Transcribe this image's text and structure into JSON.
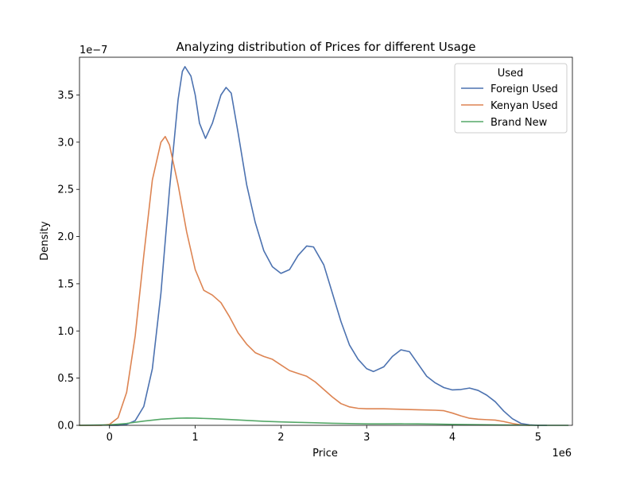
{
  "chart_data": {
    "type": "line",
    "title": "Analyzing distribution of Prices for different Usage",
    "xlabel": "Price",
    "ylabel": "Density",
    "x_offset_label": "1e6",
    "y_offset_label": "1e−7",
    "xlim": [
      -0.35,
      5.4
    ],
    "ylim": [
      0,
      3.9
    ],
    "x_ticks": [
      0,
      1,
      2,
      3,
      4,
      5
    ],
    "x_tick_labels": [
      "0",
      "1",
      "2",
      "3",
      "4",
      "5"
    ],
    "y_ticks": [
      0,
      0.5,
      1.0,
      1.5,
      2.0,
      2.5,
      3.0,
      3.5
    ],
    "y_tick_labels": [
      "0.0",
      "0.5",
      "1.0",
      "1.5",
      "2.0",
      "2.5",
      "3.0",
      "3.5"
    ],
    "grid": false,
    "legend": {
      "title": "Used",
      "placement": "top-right"
    },
    "series": [
      {
        "name": "Foreign Used",
        "color": "#4c72b0",
        "points": [
          [
            0.0,
            0.0
          ],
          [
            0.1,
            0.0
          ],
          [
            0.2,
            0.01
          ],
          [
            0.3,
            0.05
          ],
          [
            0.4,
            0.2
          ],
          [
            0.5,
            0.6
          ],
          [
            0.6,
            1.4
          ],
          [
            0.7,
            2.5
          ],
          [
            0.8,
            3.45
          ],
          [
            0.85,
            3.75
          ],
          [
            0.88,
            3.8
          ],
          [
            0.95,
            3.7
          ],
          [
            1.0,
            3.5
          ],
          [
            1.05,
            3.2
          ],
          [
            1.12,
            3.04
          ],
          [
            1.2,
            3.2
          ],
          [
            1.3,
            3.5
          ],
          [
            1.36,
            3.58
          ],
          [
            1.42,
            3.52
          ],
          [
            1.5,
            3.1
          ],
          [
            1.6,
            2.55
          ],
          [
            1.7,
            2.15
          ],
          [
            1.8,
            1.85
          ],
          [
            1.9,
            1.68
          ],
          [
            2.0,
            1.61
          ],
          [
            2.1,
            1.65
          ],
          [
            2.2,
            1.8
          ],
          [
            2.3,
            1.9
          ],
          [
            2.38,
            1.89
          ],
          [
            2.5,
            1.7
          ],
          [
            2.6,
            1.4
          ],
          [
            2.7,
            1.1
          ],
          [
            2.8,
            0.85
          ],
          [
            2.9,
            0.7
          ],
          [
            3.0,
            0.6
          ],
          [
            3.08,
            0.57
          ],
          [
            3.2,
            0.62
          ],
          [
            3.3,
            0.73
          ],
          [
            3.4,
            0.8
          ],
          [
            3.5,
            0.78
          ],
          [
            3.6,
            0.65
          ],
          [
            3.7,
            0.52
          ],
          [
            3.8,
            0.45
          ],
          [
            3.9,
            0.4
          ],
          [
            4.0,
            0.375
          ],
          [
            4.1,
            0.38
          ],
          [
            4.2,
            0.395
          ],
          [
            4.3,
            0.37
          ],
          [
            4.4,
            0.32
          ],
          [
            4.5,
            0.25
          ],
          [
            4.6,
            0.15
          ],
          [
            4.7,
            0.07
          ],
          [
            4.8,
            0.02
          ],
          [
            4.9,
            0.005
          ],
          [
            5.0,
            0.0
          ],
          [
            5.1,
            0.0
          ]
        ]
      },
      {
        "name": "Kenyan Used",
        "color": "#dd8452",
        "points": [
          [
            -0.35,
            0.0
          ],
          [
            -0.2,
            0.0
          ],
          [
            -0.1,
            0.0
          ],
          [
            0.0,
            0.01
          ],
          [
            0.1,
            0.08
          ],
          [
            0.2,
            0.35
          ],
          [
            0.3,
            0.95
          ],
          [
            0.4,
            1.8
          ],
          [
            0.5,
            2.6
          ],
          [
            0.6,
            3.0
          ],
          [
            0.65,
            3.06
          ],
          [
            0.7,
            2.97
          ],
          [
            0.8,
            2.55
          ],
          [
            0.9,
            2.05
          ],
          [
            1.0,
            1.65
          ],
          [
            1.1,
            1.43
          ],
          [
            1.2,
            1.38
          ],
          [
            1.3,
            1.3
          ],
          [
            1.4,
            1.15
          ],
          [
            1.5,
            0.98
          ],
          [
            1.6,
            0.86
          ],
          [
            1.7,
            0.77
          ],
          [
            1.8,
            0.73
          ],
          [
            1.9,
            0.7
          ],
          [
            2.0,
            0.64
          ],
          [
            2.1,
            0.58
          ],
          [
            2.2,
            0.55
          ],
          [
            2.3,
            0.52
          ],
          [
            2.4,
            0.46
          ],
          [
            2.5,
            0.38
          ],
          [
            2.6,
            0.3
          ],
          [
            2.7,
            0.23
          ],
          [
            2.8,
            0.195
          ],
          [
            2.9,
            0.18
          ],
          [
            3.0,
            0.175
          ],
          [
            3.2,
            0.175
          ],
          [
            3.4,
            0.17
          ],
          [
            3.6,
            0.165
          ],
          [
            3.8,
            0.16
          ],
          [
            3.9,
            0.155
          ],
          [
            4.0,
            0.13
          ],
          [
            4.1,
            0.1
          ],
          [
            4.2,
            0.075
          ],
          [
            4.3,
            0.065
          ],
          [
            4.4,
            0.06
          ],
          [
            4.5,
            0.055
          ],
          [
            4.6,
            0.04
          ],
          [
            4.7,
            0.02
          ],
          [
            4.8,
            0.005
          ],
          [
            4.9,
            0.0
          ]
        ]
      },
      {
        "name": "Brand New",
        "color": "#55a868",
        "points": [
          [
            -0.35,
            0.0
          ],
          [
            0.0,
            0.005
          ],
          [
            0.2,
            0.02
          ],
          [
            0.4,
            0.045
          ],
          [
            0.6,
            0.065
          ],
          [
            0.8,
            0.075
          ],
          [
            0.9,
            0.077
          ],
          [
            1.0,
            0.076
          ],
          [
            1.2,
            0.07
          ],
          [
            1.4,
            0.062
          ],
          [
            1.6,
            0.052
          ],
          [
            1.8,
            0.043
          ],
          [
            2.0,
            0.036
          ],
          [
            2.2,
            0.031
          ],
          [
            2.4,
            0.027
          ],
          [
            2.6,
            0.022
          ],
          [
            2.8,
            0.018
          ],
          [
            3.0,
            0.015
          ],
          [
            3.2,
            0.015
          ],
          [
            3.4,
            0.016
          ],
          [
            3.6,
            0.015
          ],
          [
            3.8,
            0.013
          ],
          [
            4.0,
            0.01
          ],
          [
            4.2,
            0.008
          ],
          [
            4.4,
            0.006
          ],
          [
            4.6,
            0.004
          ],
          [
            4.8,
            0.002
          ],
          [
            5.0,
            0.0
          ],
          [
            5.35,
            0.0
          ]
        ]
      }
    ]
  }
}
